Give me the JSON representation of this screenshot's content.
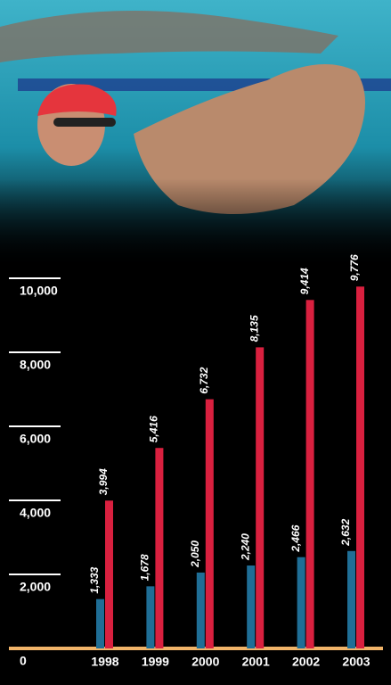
{
  "chart_data": {
    "type": "bar",
    "categories": [
      "1998",
      "1999",
      "2000",
      "2001",
      "2002",
      "2003"
    ],
    "series": [
      {
        "color": "#1f6e96",
        "values": [
          1333,
          1678,
          2050,
          2240,
          2466,
          2632
        ],
        "value_labels": [
          "1,333",
          "1,678",
          "2,050",
          "2,240",
          "2,466",
          "2,632"
        ]
      },
      {
        "color": "#d9203f",
        "values": [
          3994,
          5416,
          6732,
          8135,
          9414,
          9776
        ],
        "value_labels": [
          "3,994",
          "5,416",
          "6,732",
          "8,135",
          "9,414",
          "9,776"
        ]
      }
    ],
    "ylim": [
      0,
      10000
    ],
    "yticks": [
      0,
      {
        "value": 2000,
        "label": "2,000"
      },
      {
        "value": 4000,
        "label": "4,000"
      },
      {
        "value": 6000,
        "label": "6,000"
      },
      {
        "value": 8000,
        "label": "8,000"
      },
      {
        "value": 10000,
        "label": "10,000"
      }
    ]
  }
}
